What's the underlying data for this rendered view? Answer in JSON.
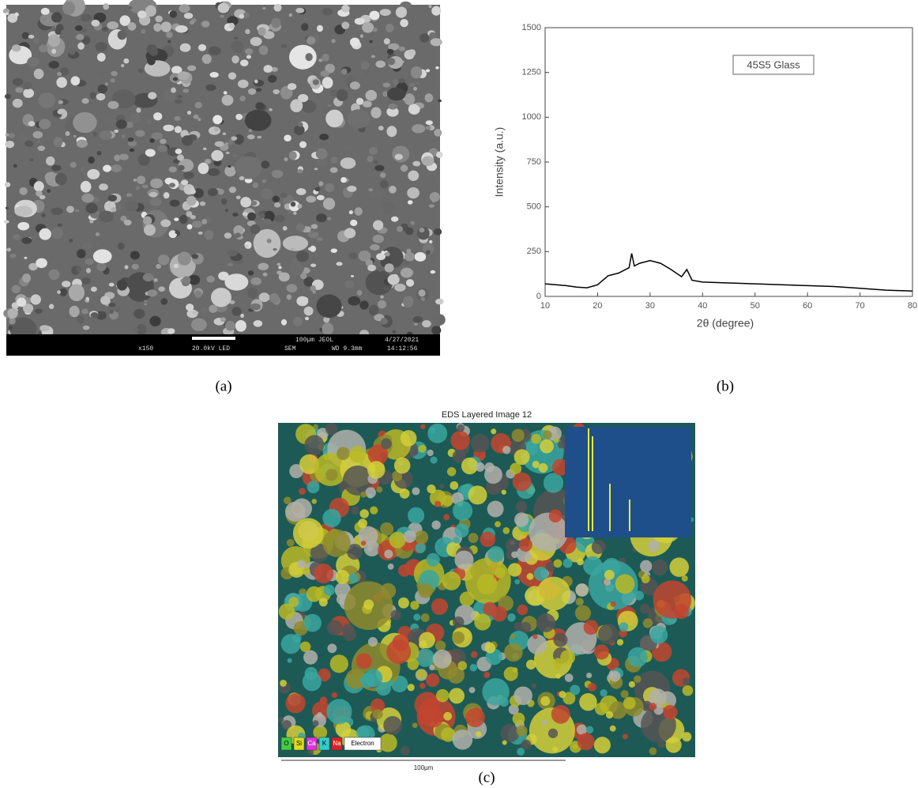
{
  "panels": {
    "a": {
      "caption": "(a)",
      "info_bar": {
        "magnification": "x150",
        "voltage": "20.0kV LED",
        "scale": "100µm JEOL",
        "mode": "SEM",
        "working_distance": "WD 9.3mm",
        "date": "4/27/2021",
        "time": "14:12:56"
      }
    },
    "b": {
      "caption": "(b)"
    },
    "c": {
      "caption": "(c)",
      "title": "EDS Layered Image 12",
      "elements": [
        "O",
        "Si",
        "Ca",
        "K",
        "Na",
        "Electron"
      ],
      "scale": "100µm"
    }
  },
  "chart_data": {
    "type": "line",
    "xlabel": "2θ (degree)",
    "ylabel": "Intensity (a.u.)",
    "x": [
      10,
      12,
      14,
      16,
      18,
      20,
      22,
      24,
      26,
      26.5,
      27,
      28,
      30,
      32,
      34,
      36,
      37,
      38,
      40,
      45,
      50,
      55,
      60,
      65,
      70,
      75,
      80
    ],
    "series": [
      {
        "name": "45S5 Glass",
        "color": "#000000",
        "values": [
          70,
          65,
          60,
          52,
          48,
          65,
          115,
          130,
          160,
          240,
          170,
          185,
          200,
          185,
          150,
          110,
          150,
          90,
          80,
          75,
          70,
          65,
          60,
          55,
          45,
          35,
          30
        ]
      }
    ],
    "xlim": [
      10,
      80
    ],
    "xticks": [
      10,
      20,
      30,
      40,
      50,
      60,
      70,
      80
    ],
    "ylim": [
      0,
      1500
    ],
    "yticks": [
      0,
      250,
      500,
      750,
      1000,
      1250,
      1500
    ]
  }
}
